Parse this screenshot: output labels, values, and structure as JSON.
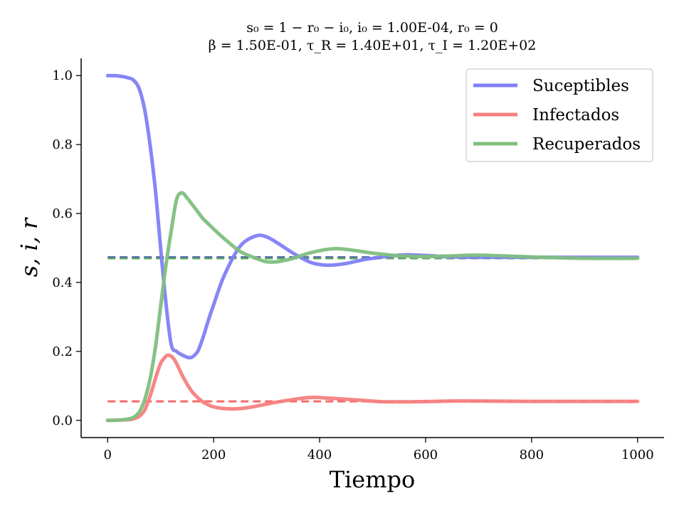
{
  "chart_data": {
    "type": "line",
    "title": "s₀ = 1 − r₀ − i₀, i₀ = 1.00E-04, r₀ = 0",
    "subtitle": "β = 1.50E-01, τ_R = 1.40E+01, τ_I = 1.20E+02",
    "xlabel": "Tiempo",
    "ylabel": "s, i, r",
    "xlim": [
      -50,
      1050
    ],
    "ylim": [
      -0.05,
      1.05
    ],
    "xticks": [
      0,
      200,
      400,
      600,
      800,
      1000
    ],
    "xtick_labels": [
      "0",
      "200",
      "400",
      "600",
      "800",
      "1000"
    ],
    "yticks": [
      0.0,
      0.2,
      0.4,
      0.6,
      0.8,
      1.0
    ],
    "ytick_labels": [
      "0.0",
      "0.2",
      "0.4",
      "0.6",
      "0.8",
      "1.0"
    ],
    "grid": false,
    "legend_position": "top-right",
    "series": [
      {
        "name": "Suceptibles",
        "color": "#7f7ff5",
        "equilibrium": 0.473,
        "equilibrium_color": "#3a3ac0",
        "x": [
          0,
          20,
          40,
          50,
          60,
          70,
          80,
          90,
          100,
          110,
          120,
          130,
          140,
          150,
          155,
          160,
          170,
          180,
          190,
          200,
          220,
          250,
          280,
          300,
          320,
          350,
          380,
          400,
          420,
          450,
          480,
          500,
          530,
          560,
          600,
          650,
          700,
          800,
          900,
          1000
        ],
        "y": [
          1.0,
          0.999,
          0.993,
          0.985,
          0.96,
          0.9,
          0.8,
          0.67,
          0.5,
          0.34,
          0.22,
          0.2,
          0.19,
          0.183,
          0.182,
          0.184,
          0.2,
          0.24,
          0.29,
          0.335,
          0.42,
          0.505,
          0.535,
          0.532,
          0.515,
          0.485,
          0.46,
          0.452,
          0.45,
          0.455,
          0.465,
          0.47,
          0.476,
          0.48,
          0.478,
          0.474,
          0.473,
          0.473,
          0.473,
          0.473
        ]
      },
      {
        "name": "Infectados",
        "color": "#f58080",
        "equilibrium": 0.055,
        "equilibrium_color": "#f55050",
        "x": [
          0,
          20,
          40,
          50,
          60,
          70,
          80,
          90,
          100,
          110,
          115,
          120,
          125,
          130,
          140,
          150,
          160,
          170,
          180,
          190,
          200,
          220,
          250,
          280,
          320,
          380,
          420,
          480,
          520,
          580,
          650,
          700,
          800,
          900,
          1000
        ],
        "y": [
          0.0,
          0.0005,
          0.002,
          0.005,
          0.012,
          0.03,
          0.07,
          0.12,
          0.165,
          0.186,
          0.189,
          0.186,
          0.178,
          0.165,
          0.133,
          0.105,
          0.082,
          0.066,
          0.053,
          0.045,
          0.039,
          0.034,
          0.034,
          0.041,
          0.053,
          0.066,
          0.064,
          0.058,
          0.054,
          0.054,
          0.056,
          0.056,
          0.055,
          0.055,
          0.055
        ]
      },
      {
        "name": "Recuperados",
        "color": "#7fbf7f",
        "equilibrium": 0.47,
        "equilibrium_color": "#4aa04a",
        "x": [
          0,
          20,
          40,
          50,
          60,
          70,
          80,
          90,
          100,
          110,
          120,
          130,
          140,
          150,
          160,
          170,
          180,
          190,
          200,
          220,
          250,
          280,
          300,
          320,
          350,
          380,
          420,
          450,
          500,
          530,
          550,
          600,
          650,
          700,
          800,
          900,
          1000
        ],
        "y": [
          0.0,
          0.0005,
          0.004,
          0.01,
          0.025,
          0.06,
          0.12,
          0.21,
          0.33,
          0.45,
          0.55,
          0.64,
          0.66,
          0.645,
          0.625,
          0.605,
          0.585,
          0.57,
          0.555,
          0.527,
          0.49,
          0.47,
          0.46,
          0.46,
          0.47,
          0.485,
          0.497,
          0.496,
          0.485,
          0.48,
          0.477,
          0.475,
          0.477,
          0.479,
          0.474,
          0.47,
          0.47
        ]
      }
    ]
  }
}
